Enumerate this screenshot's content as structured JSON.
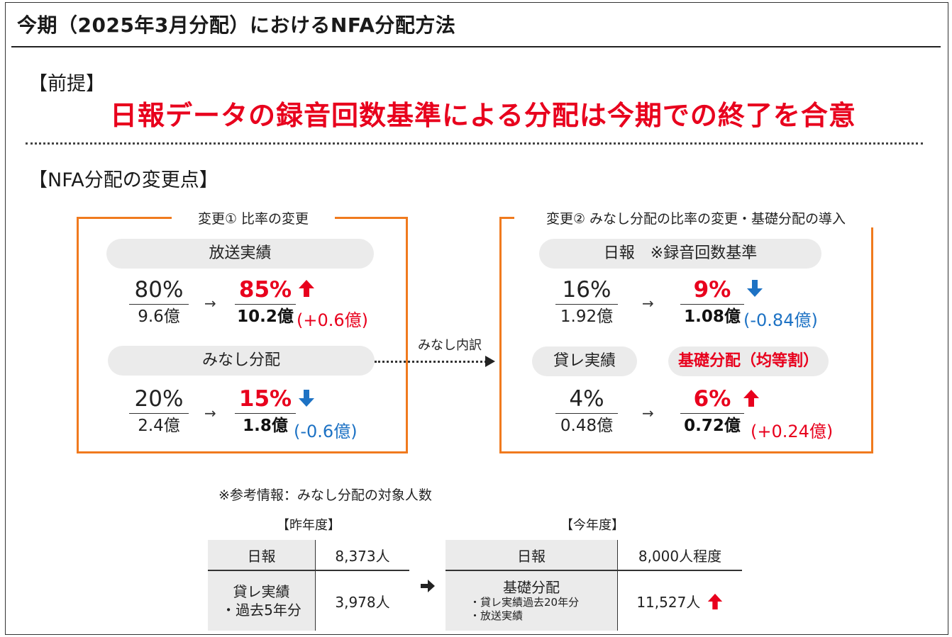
{
  "title": "今期（2025年3月分配）におけるNFA分配方法",
  "premise": {
    "heading": "【前提】",
    "headline": "日報データの録音回数基準による分配は今期での終了を合意"
  },
  "changes_heading": "【NFA分配の変更点】",
  "change1": {
    "label": "変更① 比率の変更",
    "broadcast": {
      "pill": "放送実績",
      "old_pct": "80%",
      "old_amt": "9.6億",
      "new_pct": "85%",
      "new_amt": "10.2億",
      "delta": "(+0.6億)",
      "direction": "up-arrow-icon"
    },
    "deemed": {
      "pill": "みなし分配",
      "old_pct": "20%",
      "old_amt": "2.4億",
      "new_pct": "15%",
      "new_amt": "1.8億",
      "delta": "(-0.6億)",
      "direction": "down-arrow-icon"
    }
  },
  "connector_label": "みなし内訳",
  "change2": {
    "label": "変更② みなし分配の比率の変更・基礎分配の導入",
    "daily": {
      "pill": "日報　※録音回数基準",
      "old_pct": "16%",
      "old_amt": "1.92億",
      "new_pct": "9%",
      "new_amt": "1.08億",
      "delta": "(-0.84億)",
      "direction": "down-arrow-icon"
    },
    "rental_pill": "貸レ実績",
    "basic_pill": "基礎分配（均等割）",
    "basic": {
      "old_pct": "4%",
      "old_amt": "0.48億",
      "new_pct": "6%",
      "new_amt": "0.72億",
      "delta": "(+0.24億)",
      "direction": "up-arrow-icon"
    }
  },
  "reference": {
    "note": "※参考情報：みなし分配の対象人数",
    "last_year": {
      "heading": "【昨年度】",
      "rows": [
        {
          "key": "日報",
          "value": "8,373人"
        },
        {
          "key_line1": "貸レ実績",
          "key_line2": "・過去5年分",
          "value": "3,978人"
        }
      ]
    },
    "this_year": {
      "heading": "【今年度】",
      "rows": [
        {
          "key": "日報",
          "value": "8,000人程度"
        },
        {
          "key_line1": "基礎分配",
          "key_sub1": "・貸レ実績過去20年分",
          "key_sub2": "・放送実績",
          "value": "11,527人"
        }
      ]
    }
  },
  "colors": {
    "accent_red": "#e8001d",
    "accent_blue": "#1d72c4",
    "box_orange": "#f07a1e",
    "pill_gray": "#ebebeb"
  }
}
